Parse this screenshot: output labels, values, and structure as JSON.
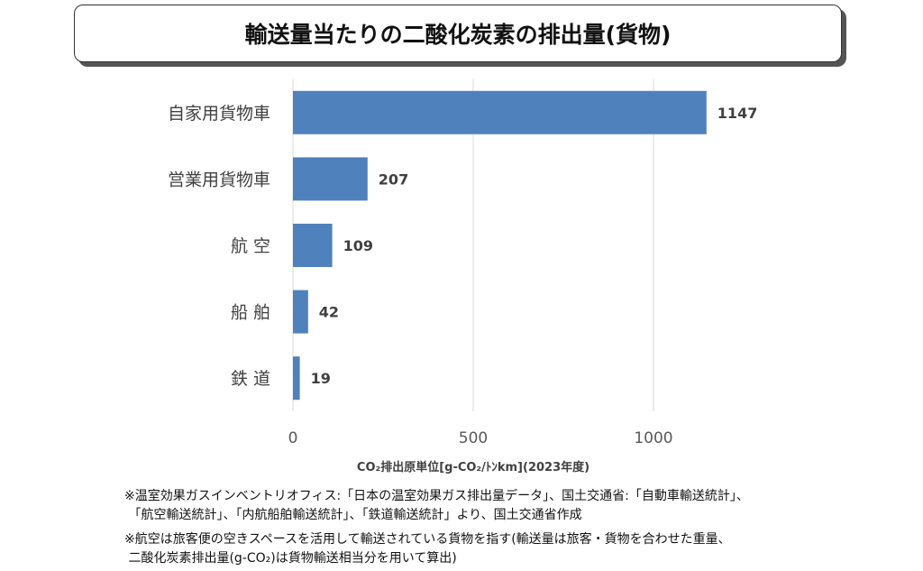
{
  "chart_data": {
    "type": "bar",
    "orientation": "horizontal",
    "title": "輸送量当たりの二酸化炭素の排出量(貨物)",
    "categories": [
      "自家用貨物車",
      "営業用貨物車",
      "航 空",
      "船 舶",
      "鉄 道"
    ],
    "values": [
      1147,
      207,
      109,
      42,
      19
    ],
    "xlabel": "CO₂排出原単位[g-CO₂/ﾄﾝkm](2023年度)",
    "xlim": [
      0,
      1200
    ],
    "xticks": [
      0,
      500,
      1000
    ],
    "grid": true,
    "bar_color": "#4f81bd"
  },
  "notes": [
    "※温室効果ガスインベントリオフィス:「日本の温室効果ガス排出量データ」、国土交通省:「自動車輸送統計」、\n 「航空輸送統計」、「内航船舶輸送統計」、「鉄道輸送統計」より、国土交通省作成",
    "※航空は旅客便の空きスペースを活用して輸送されている貨物を指す(輸送量は旅客・貨物を合わせた重量、\n 二酸化炭素排出量(g-CO₂)は貨物輸送相当分を用いて算出)"
  ]
}
